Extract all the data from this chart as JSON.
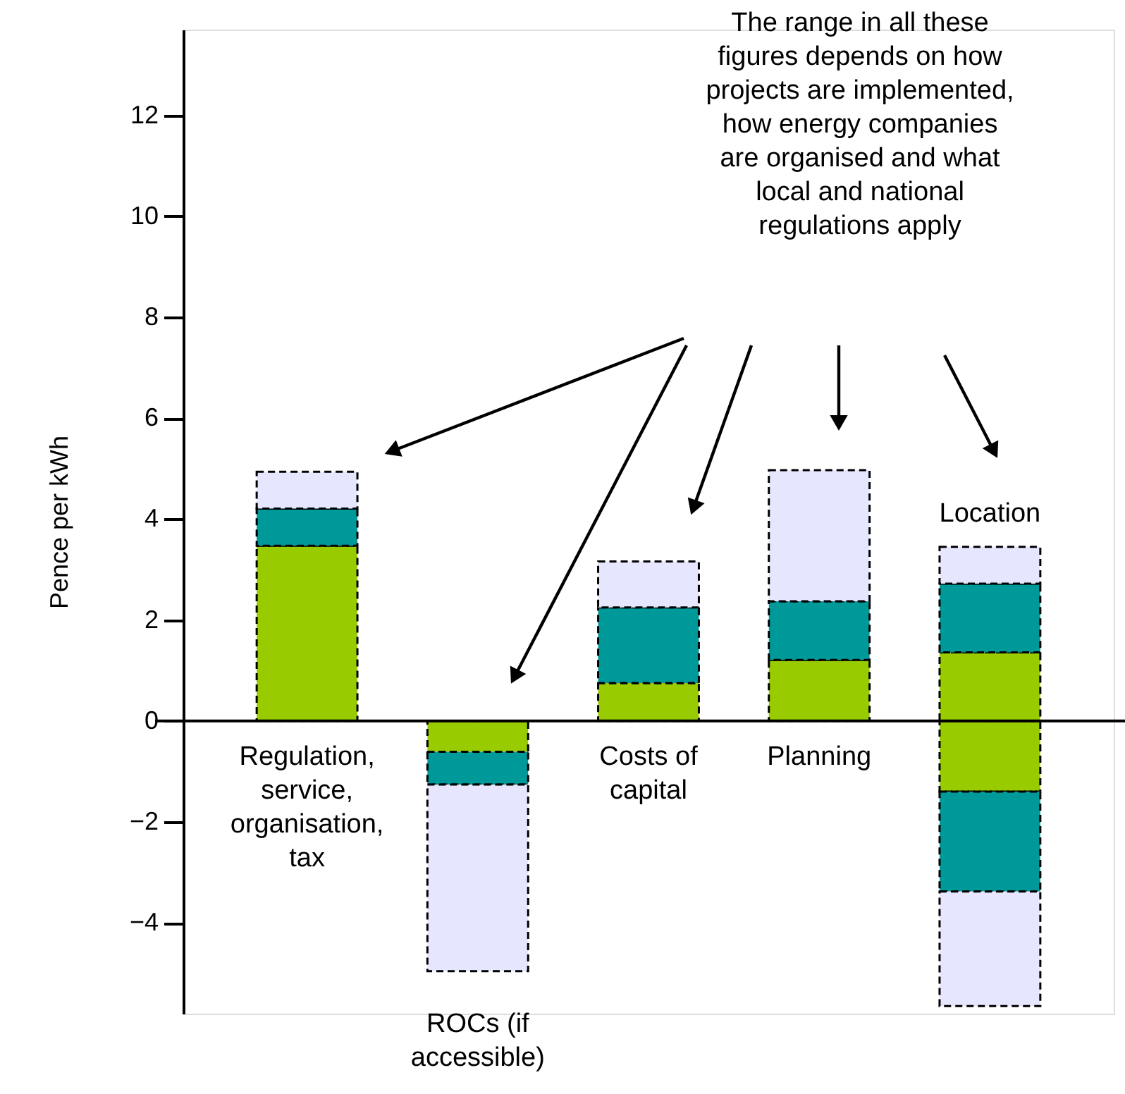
{
  "chart_data": {
    "type": "bar",
    "stacked": true,
    "ylabel": "Pence per kWh",
    "categories": [
      "Regulation, service, organisation, tax",
      "ROCs (if accessible)",
      "Costs of capital",
      "Planning",
      "Location"
    ],
    "series": [
      {
        "values": [
          3.47,
          -0.61,
          0.75,
          1.21,
          1.36
        ],
        "color": "#99cc00"
      },
      {
        "values": [
          0.74,
          -0.65,
          1.5,
          1.16,
          1.36
        ],
        "color": "#009999"
      },
      {
        "values": [
          0.73,
          -3.7,
          0.91,
          2.6,
          0.73
        ],
        "color": "#e6e6ff"
      },
      {
        "values": [
          null,
          null,
          null,
          null,
          -1.4
        ],
        "color": "#99cc00"
      },
      {
        "values": [
          null,
          null,
          null,
          null,
          -1.98
        ],
        "color": "#009999"
      },
      {
        "values": [
          null,
          null,
          null,
          null,
          -2.27
        ],
        "color": "#e6e6ff"
      }
    ],
    "ylim": [
      -5.8,
      13.7
    ],
    "yticks": [
      -4,
      -2,
      0,
      2,
      4,
      6,
      8,
      10,
      12
    ],
    "grid": false,
    "line_style": "dashed",
    "annotations": [
      "The range in all these\nfigures depends on how\nprojects are implemented,\nhow energy companies\nare organised and what\nlocal and national\nregulations apply"
    ]
  }
}
